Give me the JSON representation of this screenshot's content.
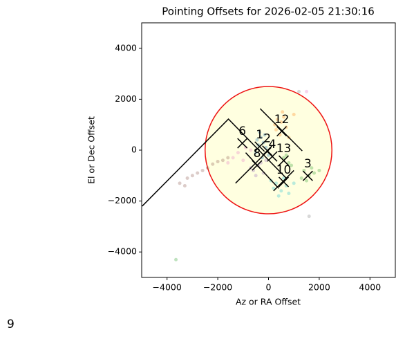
{
  "chart_data": {
    "type": "scatter",
    "title": "Pointing Offsets for 2026-02-05 21:30:16",
    "xlabel": "Az or RA Offset",
    "ylabel": "El or Dec Offset",
    "figure_label": "9",
    "xlim": [
      -5000,
      5000
    ],
    "ylim": [
      -5000,
      5000
    ],
    "xticks": [
      {
        "value": -4000,
        "label": "−4000"
      },
      {
        "value": -2000,
        "label": "−2000"
      },
      0,
      2000,
      4000
    ],
    "yticks": [
      {
        "value": -4000,
        "label": "−4000"
      },
      {
        "value": -2000,
        "label": "−2000"
      },
      0,
      2000,
      4000
    ],
    "circle": {
      "radius": 2500,
      "edge_color": "#ee1111",
      "fill_color": "#ffffe0"
    },
    "series": [
      {
        "color": "#ff7f0e",
        "x": [
          300,
          500,
          700,
          450,
          600,
          250,
          800,
          550,
          1000,
          350
        ],
        "y": [
          800,
          1100,
          900,
          600,
          1300,
          1000,
          500,
          1500,
          1400,
          1200
        ]
      },
      {
        "color": "#1f77b4",
        "x": [
          -400,
          -300,
          -200,
          -500,
          -350,
          -100,
          -250,
          -450,
          -150,
          0
        ],
        "y": [
          200,
          500,
          300,
          -100,
          700,
          100,
          -300,
          400,
          600,
          -200
        ]
      },
      {
        "color": "#2ca02c",
        "x": [
          1400,
          1600,
          1800,
          1500,
          1700,
          600,
          800,
          700,
          900,
          1300,
          2000,
          -3650
        ],
        "y": [
          -800,
          -1000,
          -900,
          -1200,
          -700,
          -300,
          -500,
          -200,
          -600,
          -1100,
          -800,
          -4300
        ]
      },
      {
        "color": "#17becf",
        "x": [
          300,
          500,
          700,
          400,
          600,
          200,
          800,
          1000,
          100
        ],
        "y": [
          -1300,
          -1600,
          -1400,
          -1800,
          -1100,
          -1500,
          -1700,
          -1300,
          -1200
        ]
      },
      {
        "color": "#8c564b",
        "x": [
          -3500,
          -3200,
          -3000,
          -2800,
          -2600,
          -2400,
          -2200,
          -2000,
          -1800,
          -1600,
          -3300
        ],
        "y": [
          -1300,
          -1100,
          -1000,
          -900,
          -800,
          -700,
          -550,
          -450,
          -400,
          -300,
          -1400
        ]
      },
      {
        "color": "#9467bd",
        "x": [
          -600,
          -400,
          -200,
          -500,
          -300,
          -700,
          -100
        ],
        "y": [
          -800,
          -600,
          -900,
          -1000,
          -500,
          -700,
          -400
        ]
      },
      {
        "color": "#e377c2",
        "x": [
          -1200,
          -900,
          -1400,
          -1000,
          -700,
          1500,
          -1600
        ],
        "y": [
          -100,
          100,
          -300,
          -400,
          0,
          2300,
          -500
        ]
      },
      {
        "color": "#7f7f7f",
        "x": [
          1600,
          1200
        ],
        "y": [
          -2600,
          2300
        ]
      }
    ],
    "annotations": [
      {
        "text": "12",
        "x": 520,
        "y": 740
      },
      {
        "text": "6",
        "x": -1030,
        "y": 270
      },
      {
        "text": "1",
        "x": -350,
        "y": 140
      },
      {
        "text": "2",
        "x": -50,
        "y": -20
      },
      {
        "text": "4",
        "x": 150,
        "y": -250
      },
      {
        "text": "13",
        "x": 600,
        "y": -410
      },
      {
        "text": "3",
        "x": 1550,
        "y": -1010
      },
      {
        "text": "10",
        "x": 600,
        "y": -1250
      },
      {
        "text": "8",
        "x": -450,
        "y": -600
      }
    ],
    "lines": [
      {
        "x": [
          -4980,
          -1580,
          700
        ],
        "y": [
          -2200,
          1220,
          -1100
        ]
      },
      {
        "x": [
          -330,
          1330
        ],
        "y": [
          1630,
          -30
        ]
      },
      {
        "x": [
          -1300,
          100
        ],
        "y": [
          -1300,
          100
        ]
      },
      {
        "x": [
          200,
          1000
        ],
        "y": [
          -1600,
          -800
        ]
      },
      {
        "x": [
          -900,
          400
        ],
        "y": [
          -100,
          -1500
        ]
      }
    ]
  }
}
